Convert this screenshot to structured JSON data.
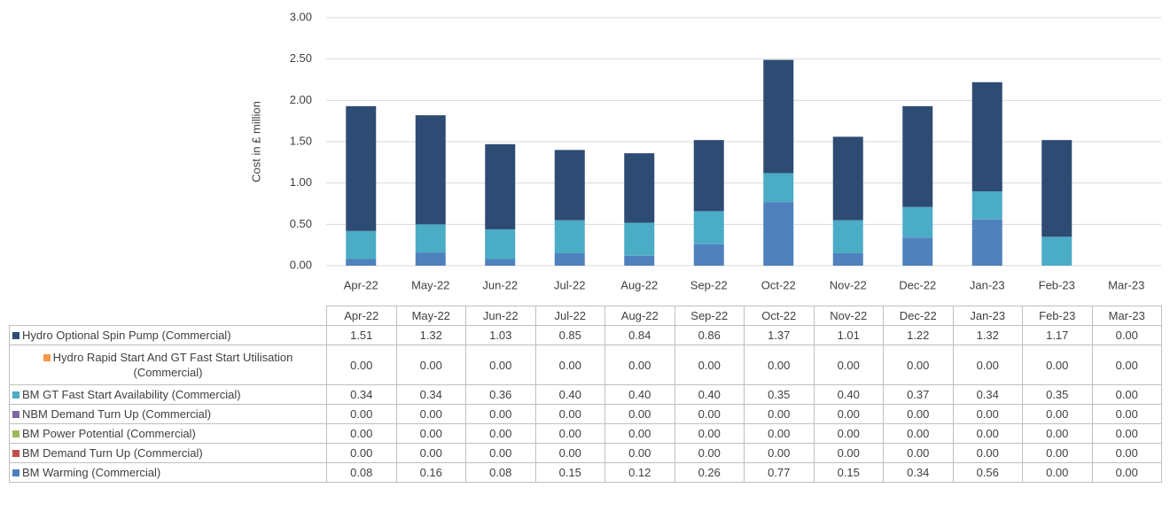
{
  "chart_data": {
    "type": "stacked-bar",
    "y_label": "Cost in £ million",
    "categories": [
      "Apr-22",
      "May-22",
      "Jun-22",
      "Jul-22",
      "Aug-22",
      "Sep-22",
      "Oct-22",
      "Nov-22",
      "Dec-22",
      "Jan-23",
      "Feb-23",
      "Mar-23"
    ],
    "ylim": [
      0,
      3
    ],
    "yticks": [
      {
        "value": 0,
        "label": "0.00"
      },
      {
        "value": 0.5,
        "label": "0.50"
      },
      {
        "value": 1,
        "label": "1.00"
      },
      {
        "value": 1.5,
        "label": "1.50"
      },
      {
        "value": 2,
        "label": "2.00"
      },
      {
        "value": 2.5,
        "label": "2.50"
      },
      {
        "value": 3,
        "label": "3.00"
      }
    ],
    "grid": true,
    "series": [
      {
        "name": "Hydro Optional Spin Pump (Commercial)",
        "color": "#2e4b73",
        "values": [
          1.51,
          1.32,
          1.03,
          0.85,
          0.84,
          0.86,
          1.37,
          1.01,
          1.22,
          1.32,
          1.17,
          0
        ],
        "value_labels": [
          "1.51",
          "1.32",
          "1.03",
          "0.85",
          "0.84",
          "0.86",
          "1.37",
          "1.01",
          "1.22",
          "1.32",
          "1.17",
          "0.00"
        ]
      },
      {
        "name": "Hydro Rapid Start And GT Fast Start Utilisation (Commercial)",
        "color": "#f79646",
        "values": [
          0,
          0,
          0,
          0,
          0,
          0,
          0,
          0,
          0,
          0,
          0,
          0
        ],
        "value_labels": [
          "0.00",
          "0.00",
          "0.00",
          "0.00",
          "0.00",
          "0.00",
          "0.00",
          "0.00",
          "0.00",
          "0.00",
          "0.00",
          "0.00"
        ]
      },
      {
        "name": "BM GT Fast Start Availability (Commercial)",
        "color": "#4bacc6",
        "values": [
          0.34,
          0.34,
          0.36,
          0.4,
          0.4,
          0.4,
          0.35,
          0.4,
          0.37,
          0.34,
          0.35,
          0
        ],
        "value_labels": [
          "0.34",
          "0.34",
          "0.36",
          "0.40",
          "0.40",
          "0.40",
          "0.35",
          "0.40",
          "0.37",
          "0.34",
          "0.35",
          "0.00"
        ]
      },
      {
        "name": "NBM Demand Turn Up (Commercial)",
        "color": "#8064a2",
        "values": [
          0,
          0,
          0,
          0,
          0,
          0,
          0,
          0,
          0,
          0,
          0,
          0
        ],
        "value_labels": [
          "0.00",
          "0.00",
          "0.00",
          "0.00",
          "0.00",
          "0.00",
          "0.00",
          "0.00",
          "0.00",
          "0.00",
          "0.00",
          "0.00"
        ]
      },
      {
        "name": "BM Power Potential (Commercial)",
        "color": "#9bbb59",
        "values": [
          0,
          0,
          0,
          0,
          0,
          0,
          0,
          0,
          0,
          0,
          0,
          0
        ],
        "value_labels": [
          "0.00",
          "0.00",
          "0.00",
          "0.00",
          "0.00",
          "0.00",
          "0.00",
          "0.00",
          "0.00",
          "0.00",
          "0.00",
          "0.00"
        ]
      },
      {
        "name": "BM Demand Turn Up (Commercial)",
        "color": "#c0504d",
        "values": [
          0,
          0,
          0,
          0,
          0,
          0,
          0,
          0,
          0,
          0,
          0,
          0
        ],
        "value_labels": [
          "0.00",
          "0.00",
          "0.00",
          "0.00",
          "0.00",
          "0.00",
          "0.00",
          "0.00",
          "0.00",
          "0.00",
          "0.00",
          "0.00"
        ]
      },
      {
        "name": "BM Warming (Commercial)",
        "color": "#4f81bd",
        "values": [
          0.08,
          0.16,
          0.08,
          0.15,
          0.12,
          0.26,
          0.77,
          0.15,
          0.34,
          0.56,
          0,
          0
        ],
        "value_labels": [
          "0.08",
          "0.16",
          "0.08",
          "0.15",
          "0.12",
          "0.26",
          "0.77",
          "0.15",
          "0.34",
          "0.56",
          "0.00",
          "0.00"
        ]
      }
    ]
  }
}
